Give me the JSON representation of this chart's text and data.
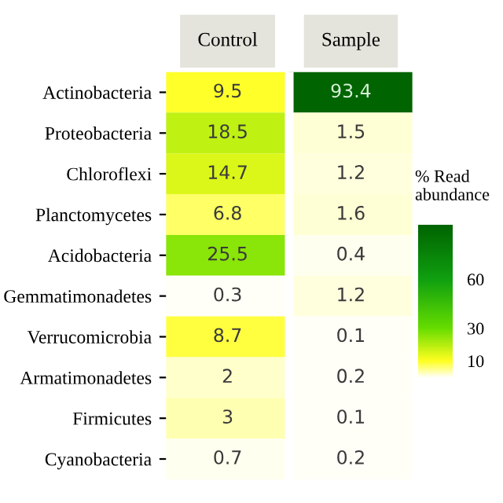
{
  "chart_data": {
    "type": "heatmap",
    "categories": [
      "Control",
      "Sample"
    ],
    "y_categories": [
      "Actinobacteria",
      "Proteobacteria",
      "Chloroflexi",
      "Planctomycetes",
      "Acidobacteria",
      "Gemmatimonadetes",
      "Verrucomicrobia",
      "Armatimonadetes",
      "Firmicutes",
      "Cyanobacteria"
    ],
    "cells": [
      [
        9.5,
        93.4
      ],
      [
        18.5,
        1.5
      ],
      [
        14.7,
        1.2
      ],
      [
        6.8,
        1.6
      ],
      [
        25.5,
        0.4
      ],
      [
        0.3,
        1.2
      ],
      [
        8.7,
        0.1
      ],
      [
        2,
        0.2
      ],
      [
        3,
        0.1
      ],
      [
        0.7,
        0.2
      ]
    ],
    "data_labels": true,
    "clabel": "% Read abundance",
    "clim": [
      0,
      93.4
    ],
    "cticks": [
      10,
      30,
      60
    ]
  }
}
